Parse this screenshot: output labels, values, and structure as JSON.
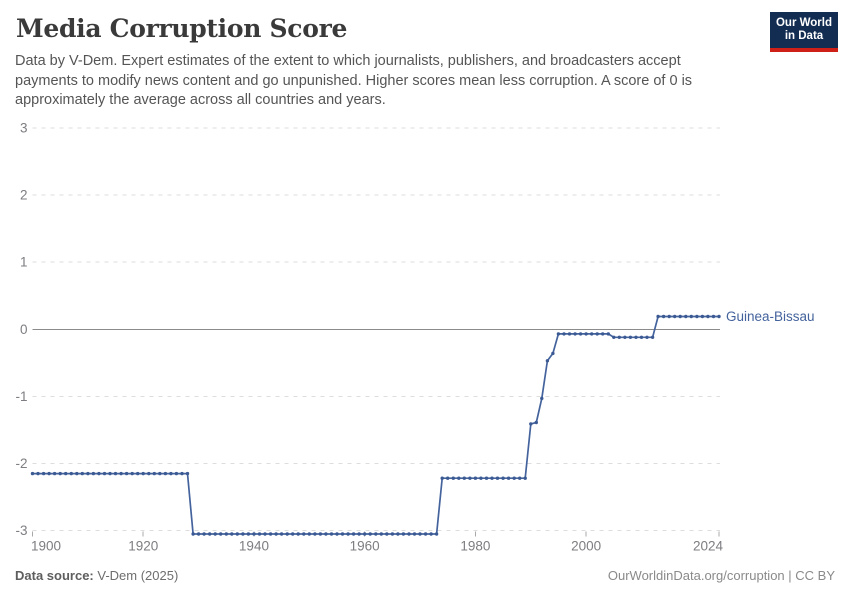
{
  "header": {
    "title": "Media Corruption Score",
    "subtitle": "Data by V-Dem. Expert estimates of the extent to which journalists, publishers, and broadcasters accept payments to modify news content and go unpunished. Higher scores mean less corruption. A score of 0 is approximately the average across all countries and years.",
    "logo": {
      "line1": "Our World",
      "line2": "in Data"
    }
  },
  "footer": {
    "source_label": "Data source:",
    "source_value": " V-Dem (2025)",
    "credit": "OurWorldinData.org/corruption | CC BY"
  },
  "chart_data": {
    "type": "line",
    "title": "Media Corruption Score",
    "xlabel": "",
    "ylabel": "",
    "xlim": [
      1900,
      2024
    ],
    "ylim": [
      -3,
      3
    ],
    "grid": "dashed-horizontal",
    "zero_line": true,
    "legend_position": "right-of-last-point",
    "yticks": [
      3,
      2,
      1,
      0,
      -1,
      -2,
      -3
    ],
    "ytick_labels": [
      "3",
      "2",
      "1",
      "0",
      "-1",
      "-2",
      "-3"
    ],
    "xticks": [
      1900,
      1920,
      1940,
      1960,
      1980,
      2000,
      2024
    ],
    "xtick_labels": [
      "1900",
      "1920",
      "1940",
      "1960",
      "1980",
      "2000",
      "2024"
    ],
    "series": [
      {
        "name": "Guinea-Bissau",
        "color": "#44639d",
        "marker_color": "#3b5a94",
        "segments": [
          {
            "from": 1900,
            "to": 1928,
            "value": -2.15
          },
          {
            "from": 1929,
            "to": 1973,
            "value": -3.05
          },
          {
            "from": 1974,
            "to": 1989,
            "value": -2.22
          },
          {
            "from": 1990,
            "to": 1990,
            "value": -1.41
          },
          {
            "from": 1991,
            "to": 1991,
            "value": -1.39
          },
          {
            "from": 1992,
            "to": 1992,
            "value": -1.03
          },
          {
            "from": 1993,
            "to": 1993,
            "value": -0.47
          },
          {
            "from": 1994,
            "to": 1994,
            "value": -0.36
          },
          {
            "from": 1995,
            "to": 2004,
            "value": -0.07
          },
          {
            "from": 2005,
            "to": 2012,
            "value": -0.12
          },
          {
            "from": 2013,
            "to": 2024,
            "value": 0.19
          }
        ]
      }
    ],
    "colors": {
      "gridline": "#dddddd",
      "zero_line": "#8b8b8b",
      "tick_text": "#7d7d82",
      "tick_mark": "#a8a8a8"
    }
  }
}
